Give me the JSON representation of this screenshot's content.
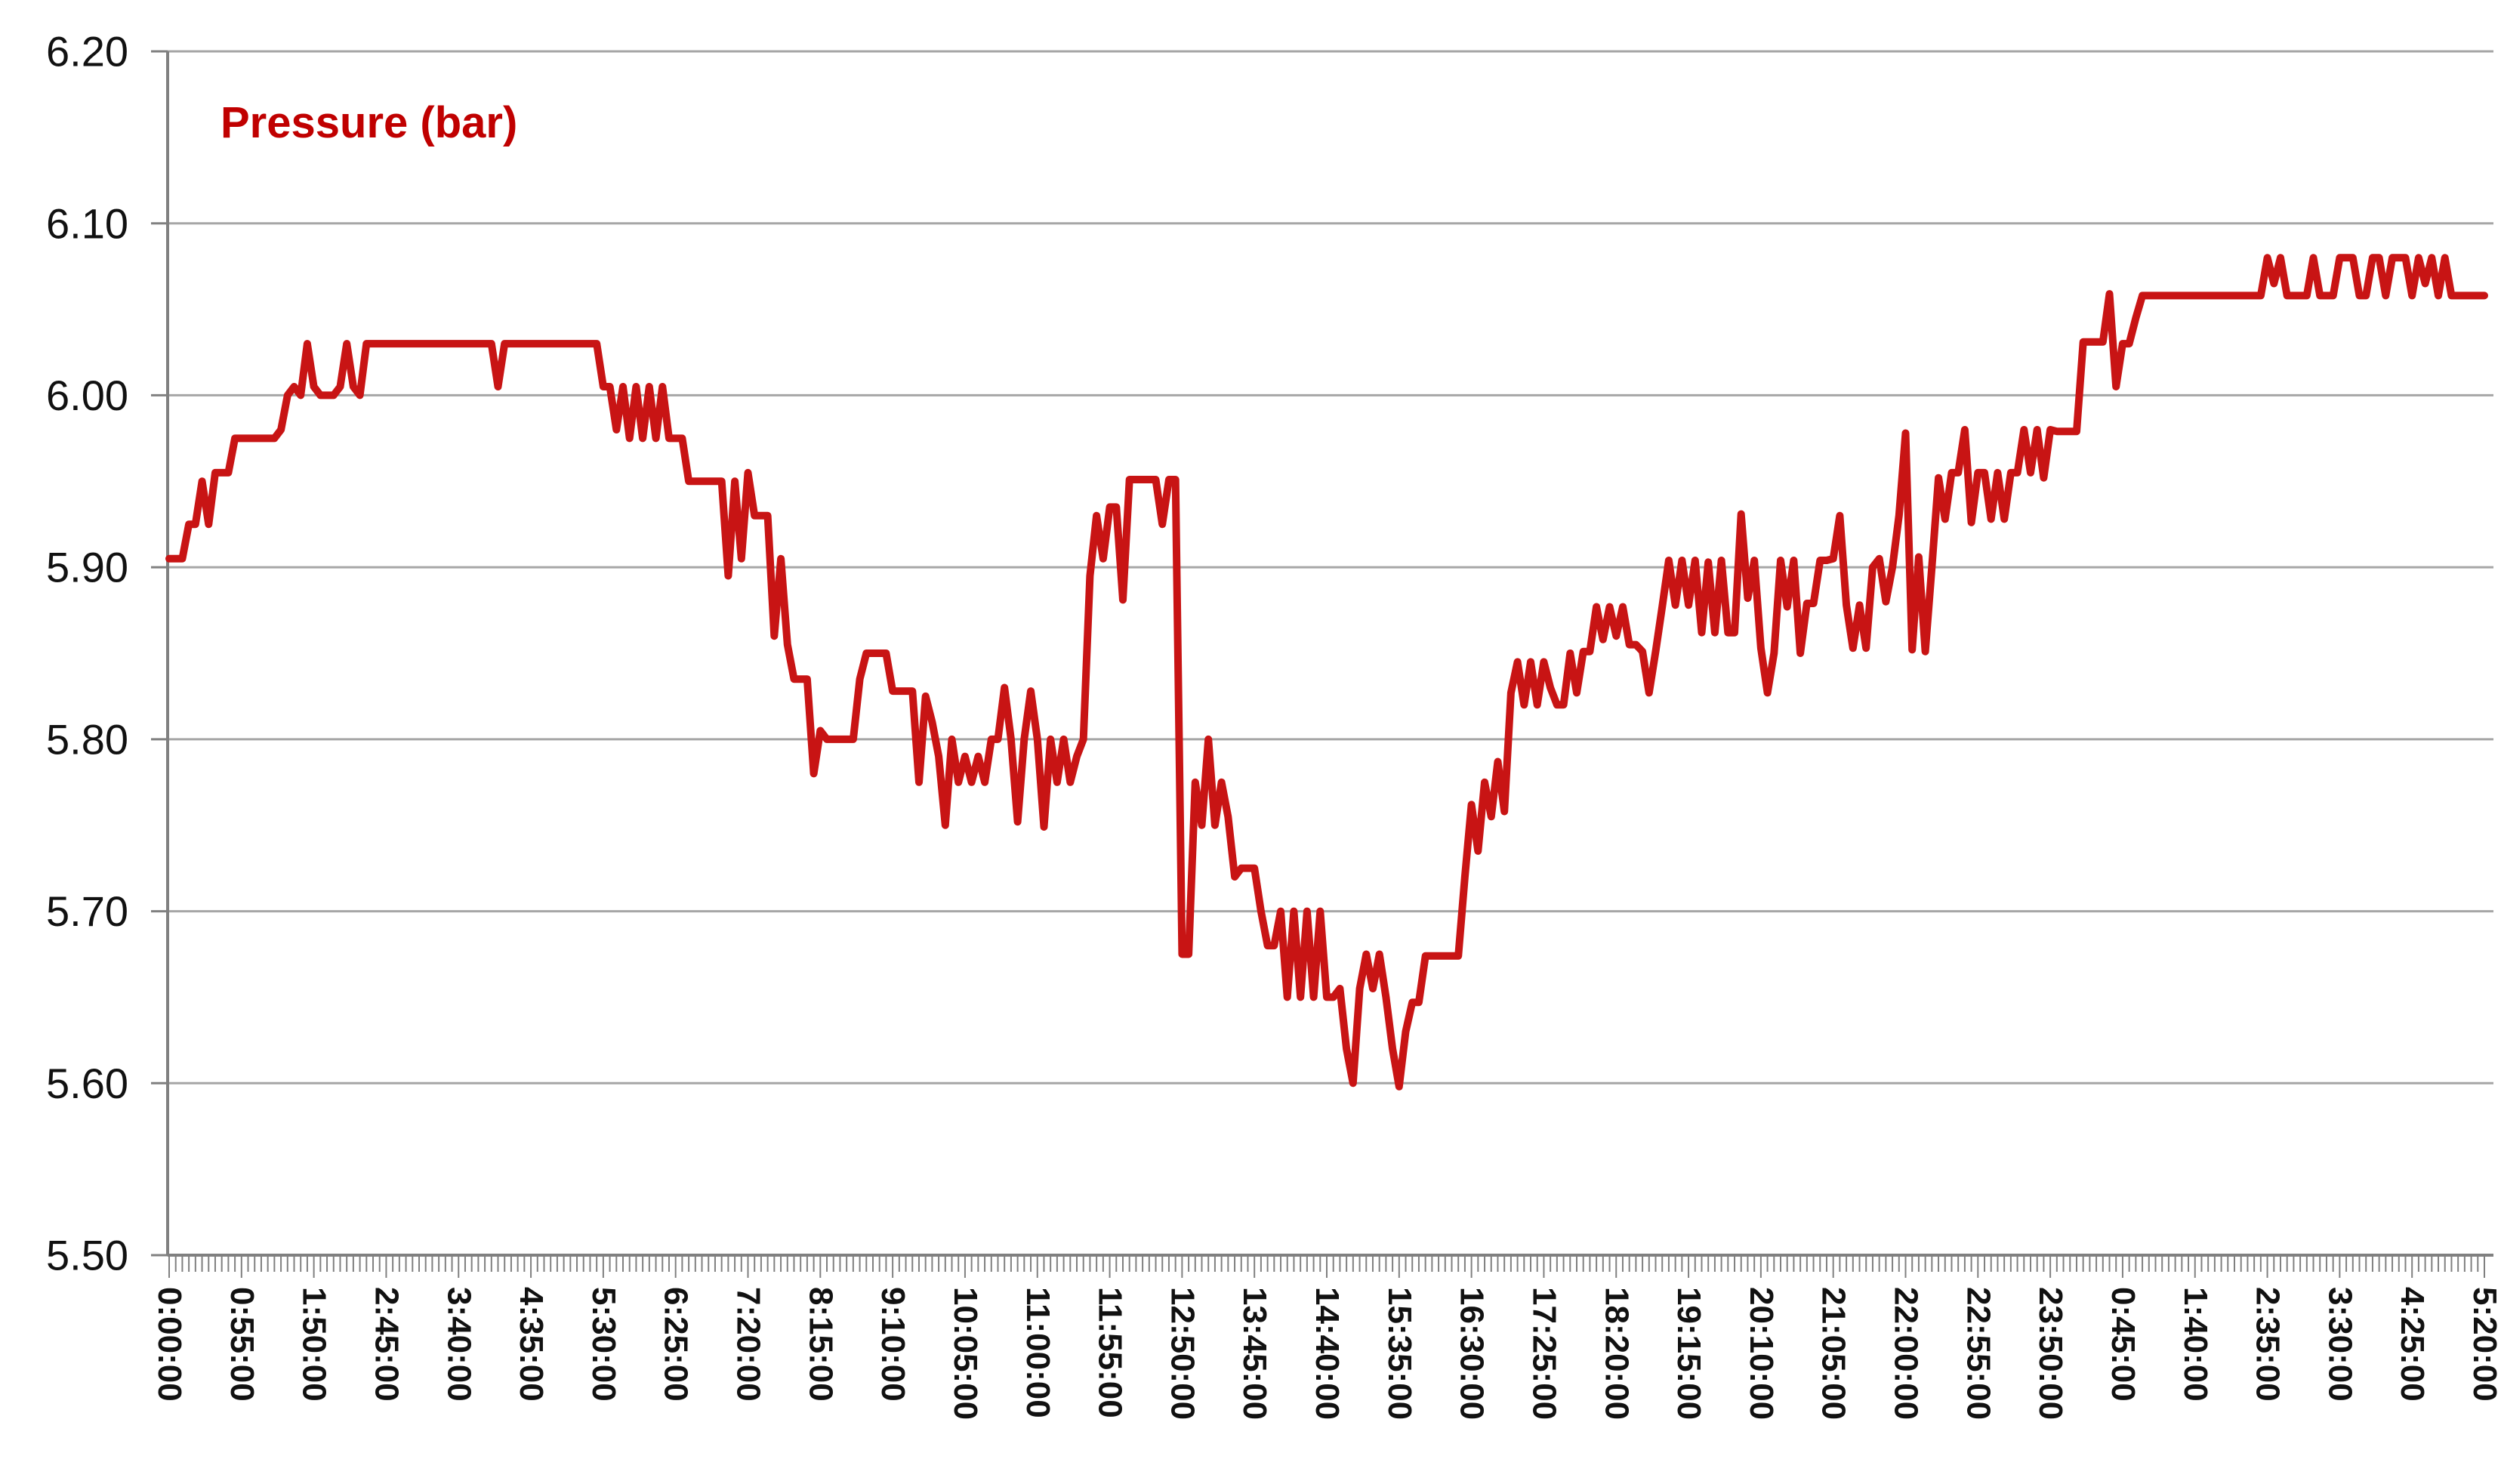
{
  "title": "Pressure (bar)",
  "colors": {
    "series": "#C81414",
    "title": "#C00000",
    "grid": "#A6A6A6",
    "axis": "#808080",
    "tick": "#808080",
    "label": "#111111",
    "background": "#FFFFFF"
  },
  "chart_data": {
    "type": "line",
    "title": "Pressure (bar)",
    "xlabel": "",
    "ylabel": "",
    "x_start": "0:00:00",
    "interval_minutes": 5,
    "tick_label_stride": 11,
    "x_tick_labels": [
      "0:00:00",
      "0:55:00",
      "1:50:00",
      "2:45:00",
      "3:40:00",
      "4:35:00",
      "5:30:00",
      "6:25:00",
      "7:20:00",
      "8:15:00",
      "9:10:00",
      "10:05:00",
      "11:00:00",
      "11:55:00",
      "12:50:00",
      "13:45:00",
      "14:40:00",
      "15:35:00",
      "16:30:00",
      "17:25:00",
      "18:20:00",
      "19:15:00",
      "20:10:00",
      "21:05:00",
      "22:00:00",
      "22:55:00",
      "23:50:00",
      "0:45:00",
      "1:40:00",
      "2:35:00",
      "3:30:00",
      "4:25:00",
      "5:20:00"
    ],
    "y_ticks": [
      "6.20",
      "6.10",
      "6.00",
      "5.90",
      "5.80",
      "5.70",
      "5.60",
      "5.50"
    ],
    "ylim": [
      5.5,
      6.2
    ],
    "grid": true,
    "legend": "none",
    "series": [
      {
        "name": "Pressure (bar)",
        "values": [
          5.905,
          5.905,
          5.905,
          5.925,
          5.925,
          5.95,
          5.925,
          5.955,
          5.955,
          5.955,
          5.975,
          5.975,
          5.975,
          5.975,
          5.975,
          5.975,
          5.975,
          5.98,
          6.0,
          6.005,
          6.0,
          6.03,
          6.005,
          6.0,
          6.0,
          6.0,
          6.005,
          6.03,
          6.005,
          6.0,
          6.03,
          6.03,
          6.03,
          6.03,
          6.03,
          6.03,
          6.03,
          6.03,
          6.03,
          6.03,
          6.03,
          6.03,
          6.03,
          6.03,
          6.03,
          6.03,
          6.03,
          6.03,
          6.03,
          6.03,
          6.005,
          6.03,
          6.03,
          6.03,
          6.03,
          6.03,
          6.03,
          6.03,
          6.03,
          6.03,
          6.03,
          6.03,
          6.03,
          6.03,
          6.03,
          6.03,
          6.005,
          6.005,
          5.98,
          6.005,
          5.975,
          6.005,
          5.975,
          6.005,
          5.975,
          6.005,
          5.975,
          5.975,
          5.975,
          5.95,
          5.95,
          5.95,
          5.95,
          5.95,
          5.95,
          5.895,
          5.95,
          5.905,
          5.955,
          5.93,
          5.93,
          5.93,
          5.86,
          5.905,
          5.855,
          5.835,
          5.835,
          5.835,
          5.78,
          5.805,
          5.8,
          5.8,
          5.8,
          5.8,
          5.8,
          5.835,
          5.85,
          5.85,
          5.85,
          5.85,
          5.828,
          5.828,
          5.828,
          5.828,
          5.775,
          5.825,
          5.81,
          5.79,
          5.75,
          5.8,
          5.775,
          5.79,
          5.775,
          5.79,
          5.775,
          5.8,
          5.8,
          5.83,
          5.8,
          5.752,
          5.8,
          5.828,
          5.8,
          5.749,
          5.8,
          5.775,
          5.8,
          5.775,
          5.79,
          5.8,
          5.895,
          5.93,
          5.905,
          5.935,
          5.935,
          5.881,
          5.951,
          5.951,
          5.951,
          5.951,
          5.951,
          5.925,
          5.951,
          5.951,
          5.675,
          5.675,
          5.775,
          5.75,
          5.8,
          5.75,
          5.775,
          5.755,
          5.72,
          5.725,
          5.725,
          5.725,
          5.7,
          5.68,
          5.68,
          5.7,
          5.65,
          5.7,
          5.65,
          5.7,
          5.65,
          5.7,
          5.65,
          5.65,
          5.655,
          5.62,
          5.6,
          5.655,
          5.675,
          5.655,
          5.675,
          5.65,
          5.62,
          5.598,
          5.63,
          5.647,
          5.647,
          5.674,
          5.674,
          5.674,
          5.674,
          5.674,
          5.674,
          5.72,
          5.762,
          5.735,
          5.775,
          5.755,
          5.787,
          5.758,
          5.827,
          5.845,
          5.82,
          5.845,
          5.82,
          5.845,
          5.83,
          5.82,
          5.82,
          5.85,
          5.827,
          5.851,
          5.851,
          5.877,
          5.858,
          5.877,
          5.86,
          5.877,
          5.855,
          5.855,
          5.851,
          5.827,
          5.851,
          5.877,
          5.904,
          5.878,
          5.904,
          5.878,
          5.904,
          5.862,
          5.903,
          5.862,
          5.904,
          5.862,
          5.862,
          5.931,
          5.882,
          5.904,
          5.853,
          5.827,
          5.85,
          5.904,
          5.877,
          5.904,
          5.85,
          5.879,
          5.879,
          5.904,
          5.904,
          5.905,
          5.93,
          5.878,
          5.853,
          5.878,
          5.853,
          5.9,
          5.905,
          5.88,
          5.9,
          5.93,
          5.978,
          5.852,
          5.906,
          5.851,
          5.9,
          5.952,
          5.928,
          5.955,
          5.955,
          5.98,
          5.926,
          5.955,
          5.955,
          5.928,
          5.955,
          5.928,
          5.955,
          5.955,
          5.98,
          5.955,
          5.98,
          5.952,
          5.98,
          5.979,
          5.979,
          5.979,
          5.979,
          6.031,
          6.031,
          6.031,
          6.031,
          6.059,
          6.005,
          6.03,
          6.03,
          6.045,
          6.058,
          6.058,
          6.058,
          6.058,
          6.058,
          6.058,
          6.058,
          6.058,
          6.058,
          6.058,
          6.058,
          6.058,
          6.058,
          6.058,
          6.058,
          6.058,
          6.058,
          6.058,
          6.058,
          6.08,
          6.065,
          6.08,
          6.058,
          6.058,
          6.058,
          6.058,
          6.08,
          6.058,
          6.058,
          6.058,
          6.08,
          6.08,
          6.08,
          6.058,
          6.058,
          6.08,
          6.08,
          6.058,
          6.08,
          6.08,
          6.08,
          6.058,
          6.08,
          6.065,
          6.08,
          6.058,
          6.08,
          6.058,
          6.058,
          6.058,
          6.058,
          6.058,
          6.058
        ]
      }
    ]
  }
}
